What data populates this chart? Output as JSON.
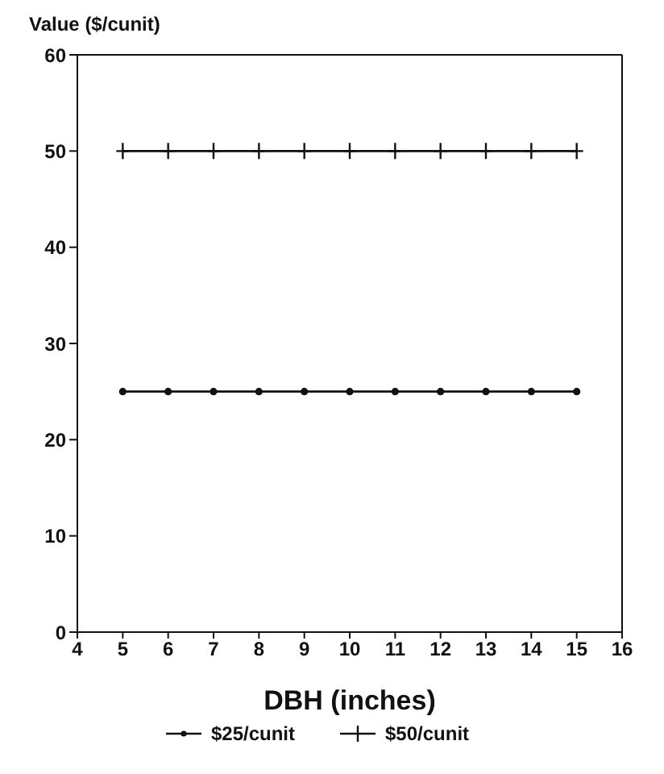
{
  "chart_data": {
    "type": "line",
    "ylabel": "Value ($/cunit)",
    "xlabel": "DBH (inches)",
    "x": [
      5,
      6,
      7,
      8,
      9,
      10,
      11,
      12,
      13,
      14,
      15
    ],
    "series": [
      {
        "name": "$25/cunit",
        "color": "#111111",
        "marker": "circle",
        "values": [
          25,
          25,
          25,
          25,
          25,
          25,
          25,
          25,
          25,
          25,
          25
        ]
      },
      {
        "name": "$50/cunit",
        "color": "#111111",
        "marker": "cross",
        "values": [
          50,
          50,
          50,
          50,
          50,
          50,
          50,
          50,
          50,
          50,
          50
        ]
      }
    ],
    "xlim": [
      4,
      16
    ],
    "xticks": [
      4,
      5,
      6,
      7,
      8,
      9,
      10,
      11,
      12,
      13,
      14,
      15,
      16
    ],
    "ylim": [
      0,
      60
    ],
    "yticks": [
      0,
      10,
      20,
      30,
      40,
      50,
      60
    ],
    "grid": false,
    "legend": "bottom",
    "line_style": "solid"
  }
}
